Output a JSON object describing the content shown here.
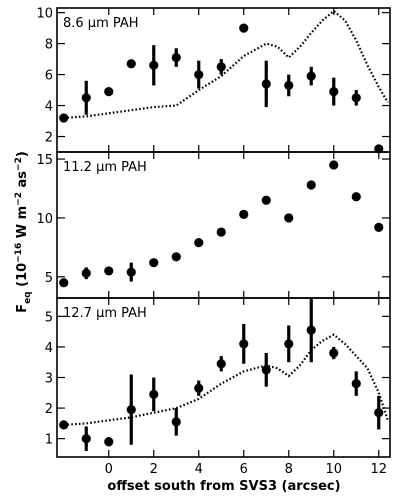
{
  "chart_data": {
    "type": "scatter",
    "xlabel": "offset south from SVS3 (arcsec)",
    "ylabel": "F_eq (10^-16 W m^-2 as^-2)",
    "ylabel_parts": {
      "main": "F",
      "sub": "eq",
      "pre": " (10",
      "exp1": "−16",
      "mid": " W m",
      "exp2": "−2",
      "mid2": " as",
      "exp3": "−2",
      "post": ")"
    },
    "xlim": [
      -2.3,
      12.5
    ],
    "xticks": [
      0,
      2,
      4,
      6,
      8,
      10,
      12
    ],
    "grid": false,
    "panels": [
      {
        "label": "8.6 µm PAH",
        "ylim": [
          1.0,
          10.3
        ],
        "yticks": [
          2,
          4,
          6,
          8,
          10
        ],
        "points": [
          {
            "x": -2,
            "y": 3.2,
            "err": 0.2
          },
          {
            "x": -1,
            "y": 4.5,
            "err": 1.1
          },
          {
            "x": 0,
            "y": 4.9,
            "err": 0.2
          },
          {
            "x": 1,
            "y": 6.7,
            "err": 0.2
          },
          {
            "x": 2,
            "y": 6.6,
            "err": 1.3
          },
          {
            "x": 3,
            "y": 7.1,
            "err": 0.6
          },
          {
            "x": 4,
            "y": 6.0,
            "err": 0.9
          },
          {
            "x": 5,
            "y": 6.5,
            "err": 0.5
          },
          {
            "x": 6,
            "y": 9.0,
            "err": 0.2
          },
          {
            "x": 7,
            "y": 5.4,
            "err": 1.5
          },
          {
            "x": 8,
            "y": 5.3,
            "err": 0.7
          },
          {
            "x": 9,
            "y": 5.9,
            "err": 0.6
          },
          {
            "x": 10,
            "y": 4.9,
            "err": 0.9
          },
          {
            "x": 11,
            "y": 4.5,
            "err": 0.5
          },
          {
            "x": 12,
            "y": 1.2,
            "err": 0.2
          }
        ],
        "model": {
          "x": [
            -2,
            -1,
            0,
            1,
            2,
            3,
            4,
            5,
            6,
            7,
            7.5,
            8,
            8.5,
            9,
            9.5,
            10,
            10.5,
            11,
            11.5,
            12,
            12.4
          ],
          "y": [
            3.2,
            3.3,
            3.5,
            3.7,
            3.9,
            4.0,
            5.0,
            5.9,
            7.2,
            8.0,
            7.8,
            7.1,
            7.8,
            8.7,
            9.5,
            10.1,
            9.5,
            8.2,
            6.6,
            5.2,
            4.2
          ]
        }
      },
      {
        "label": "11.2 µm PAH",
        "ylim": [
          3.2,
          15.6
        ],
        "yticks": [
          5,
          10,
          15
        ],
        "points": [
          {
            "x": -2,
            "y": 4.5,
            "err": 0.2
          },
          {
            "x": -1,
            "y": 5.3,
            "err": 0.5
          },
          {
            "x": 0,
            "y": 5.5,
            "err": 0.2
          },
          {
            "x": 1,
            "y": 5.4,
            "err": 0.8
          },
          {
            "x": 2,
            "y": 6.2,
            "err": 0.2
          },
          {
            "x": 3,
            "y": 6.7,
            "err": 0.2
          },
          {
            "x": 4,
            "y": 7.9,
            "err": 0.2
          },
          {
            "x": 5,
            "y": 8.8,
            "err": 0.2
          },
          {
            "x": 6,
            "y": 10.3,
            "err": 0.2
          },
          {
            "x": 7,
            "y": 11.5,
            "err": 0.2
          },
          {
            "x": 8,
            "y": 10.0,
            "err": 0.2
          },
          {
            "x": 9,
            "y": 12.8,
            "err": 0.2
          },
          {
            "x": 10,
            "y": 14.5,
            "err": 0.2
          },
          {
            "x": 11,
            "y": 11.8,
            "err": 0.2
          },
          {
            "x": 12,
            "y": 9.2,
            "err": 0.2
          }
        ]
      },
      {
        "label": "12.7 µm PAH",
        "ylim": [
          0.4,
          5.6
        ],
        "yticks": [
          1,
          2,
          3,
          4,
          5
        ],
        "points": [
          {
            "x": -2,
            "y": 1.45,
            "err": 0.1
          },
          {
            "x": -1,
            "y": 1.0,
            "err": 0.4
          },
          {
            "x": 0,
            "y": 0.9,
            "err": 0.15
          },
          {
            "x": 1,
            "y": 1.95,
            "err": 1.15
          },
          {
            "x": 2,
            "y": 2.45,
            "err": 0.55
          },
          {
            "x": 3,
            "y": 1.55,
            "err": 0.45
          },
          {
            "x": 4,
            "y": 2.65,
            "err": 0.25
          },
          {
            "x": 5,
            "y": 3.45,
            "err": 0.25
          },
          {
            "x": 6,
            "y": 4.1,
            "err": 0.65
          },
          {
            "x": 7,
            "y": 3.25,
            "err": 0.55
          },
          {
            "x": 8,
            "y": 4.1,
            "err": 0.6
          },
          {
            "x": 9,
            "y": 4.55,
            "err": 1.05
          },
          {
            "x": 10,
            "y": 3.8,
            "err": 0.2
          },
          {
            "x": 11,
            "y": 2.8,
            "err": 0.4
          },
          {
            "x": 12,
            "y": 1.85,
            "err": 0.55
          }
        ],
        "model": {
          "x": [
            -2,
            -1,
            0,
            1,
            2,
            3,
            4,
            5,
            6,
            7,
            7.5,
            8,
            8.5,
            9,
            9.5,
            10,
            10.5,
            11,
            11.5,
            12,
            12.4
          ],
          "y": [
            1.45,
            1.5,
            1.6,
            1.7,
            1.85,
            2.0,
            2.3,
            2.8,
            3.2,
            3.4,
            3.3,
            3.05,
            3.4,
            3.9,
            4.2,
            4.4,
            4.1,
            3.7,
            3.3,
            2.5,
            1.6
          ]
        }
      }
    ]
  }
}
